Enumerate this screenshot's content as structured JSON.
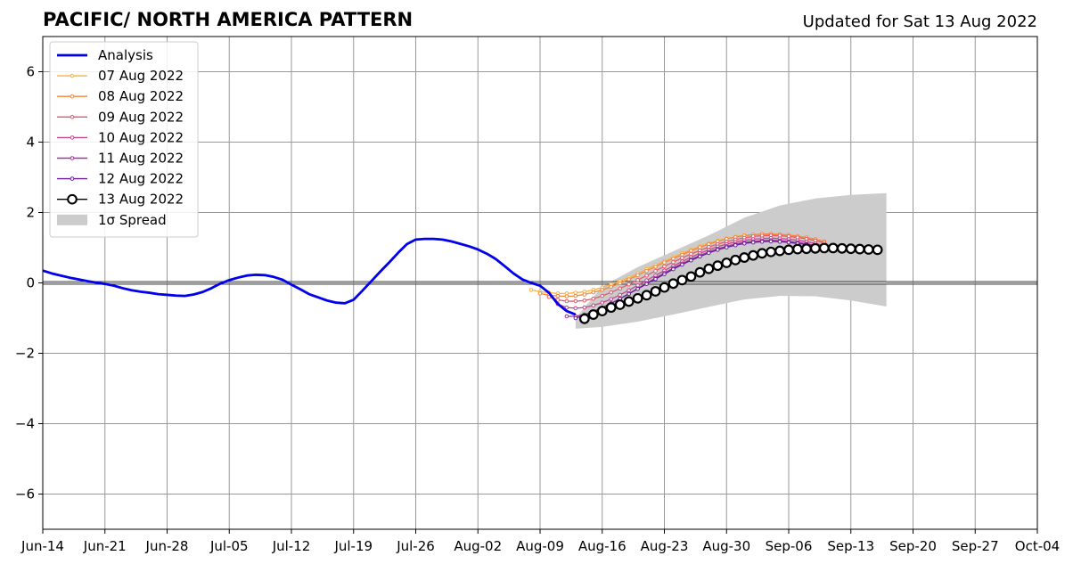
{
  "chart_data": {
    "type": "line",
    "title": "PACIFIC/ NORTH AMERICA PATTERN",
    "subtitle": "Updated for Sat 13 Aug 2022",
    "xlabel": "",
    "ylabel": "",
    "xlim": [
      "2022-06-14",
      "2022-10-04"
    ],
    "ylim": [
      -7,
      7
    ],
    "x_ticks": [
      "2022-06-14",
      "2022-06-21",
      "2022-06-28",
      "2022-07-05",
      "2022-07-12",
      "2022-07-19",
      "2022-07-26",
      "2022-08-02",
      "2022-08-09",
      "2022-08-16",
      "2022-08-23",
      "2022-08-30",
      "2022-09-06",
      "2022-09-13",
      "2022-09-20",
      "2022-09-27",
      "2022-10-04"
    ],
    "x_tick_labels": [
      "Jun-14",
      "Jun-21",
      "Jun-28",
      "Jul-05",
      "Jul-12",
      "Jul-19",
      "Jul-26",
      "Aug-02",
      "Aug-09",
      "Aug-16",
      "Aug-23",
      "Aug-30",
      "Sep-06",
      "Sep-13",
      "Sep-20",
      "Sep-27",
      "Oct-04"
    ],
    "y_ticks": [
      -6,
      -4,
      -2,
      0,
      2,
      4,
      6
    ],
    "y_tick_labels": [
      "−6",
      "−4",
      "−2",
      "0",
      "2",
      "4",
      "6"
    ],
    "grid": true,
    "legend_position": "top-left",
    "analysis": {
      "name": "Analysis",
      "color": "#0000ee",
      "points": [
        [
          "2022-06-14",
          0.35
        ],
        [
          "2022-06-15",
          0.27
        ],
        [
          "2022-06-16",
          0.21
        ],
        [
          "2022-06-17",
          0.15
        ],
        [
          "2022-06-18",
          0.1
        ],
        [
          "2022-06-19",
          0.05
        ],
        [
          "2022-06-20",
          0.01
        ],
        [
          "2022-06-21",
          -0.03
        ],
        [
          "2022-06-22",
          -0.08
        ],
        [
          "2022-06-23",
          -0.15
        ],
        [
          "2022-06-24",
          -0.21
        ],
        [
          "2022-06-25",
          -0.25
        ],
        [
          "2022-06-26",
          -0.28
        ],
        [
          "2022-06-27",
          -0.32
        ],
        [
          "2022-06-28",
          -0.34
        ],
        [
          "2022-06-29",
          -0.36
        ],
        [
          "2022-06-30",
          -0.37
        ],
        [
          "2022-07-01",
          -0.33
        ],
        [
          "2022-07-02",
          -0.26
        ],
        [
          "2022-07-03",
          -0.15
        ],
        [
          "2022-07-04",
          -0.02
        ],
        [
          "2022-07-05",
          0.08
        ],
        [
          "2022-07-06",
          0.15
        ],
        [
          "2022-07-07",
          0.21
        ],
        [
          "2022-07-08",
          0.23
        ],
        [
          "2022-07-09",
          0.22
        ],
        [
          "2022-07-10",
          0.17
        ],
        [
          "2022-07-11",
          0.09
        ],
        [
          "2022-07-12",
          -0.05
        ],
        [
          "2022-07-13",
          -0.18
        ],
        [
          "2022-07-14",
          -0.32
        ],
        [
          "2022-07-15",
          -0.41
        ],
        [
          "2022-07-16",
          -0.5
        ],
        [
          "2022-07-17",
          -0.56
        ],
        [
          "2022-07-18",
          -0.58
        ],
        [
          "2022-07-19",
          -0.48
        ],
        [
          "2022-07-20",
          -0.22
        ],
        [
          "2022-07-21",
          0.05
        ],
        [
          "2022-07-22",
          0.32
        ],
        [
          "2022-07-23",
          0.58
        ],
        [
          "2022-07-24",
          0.85
        ],
        [
          "2022-07-25",
          1.1
        ],
        [
          "2022-07-26",
          1.23
        ],
        [
          "2022-07-27",
          1.25
        ],
        [
          "2022-07-28",
          1.25
        ],
        [
          "2022-07-29",
          1.23
        ],
        [
          "2022-07-30",
          1.18
        ],
        [
          "2022-07-31",
          1.11
        ],
        [
          "2022-08-01",
          1.04
        ],
        [
          "2022-08-02",
          0.95
        ],
        [
          "2022-08-03",
          0.83
        ],
        [
          "2022-08-04",
          0.68
        ],
        [
          "2022-08-05",
          0.48
        ],
        [
          "2022-08-06",
          0.27
        ],
        [
          "2022-08-07",
          0.1
        ],
        [
          "2022-08-08",
          0.0
        ],
        [
          "2022-08-09",
          -0.08
        ],
        [
          "2022-08-10",
          -0.28
        ],
        [
          "2022-08-11",
          -0.6
        ],
        [
          "2022-08-12",
          -0.8
        ],
        [
          "2022-08-13",
          -0.9
        ]
      ]
    },
    "spread": {
      "name": "1σ Spread",
      "color": "#cccccc",
      "x": [
        "2022-08-13",
        "2022-08-16",
        "2022-08-20",
        "2022-08-24",
        "2022-08-28",
        "2022-09-01",
        "2022-09-05",
        "2022-09-09",
        "2022-09-13",
        "2022-09-17"
      ],
      "upper": [
        -1.0,
        -0.1,
        0.45,
        0.9,
        1.35,
        1.85,
        2.2,
        2.4,
        2.5,
        2.55
      ],
      "lower": [
        -1.3,
        -1.25,
        -1.1,
        -0.9,
        -0.68,
        -0.47,
        -0.37,
        -0.38,
        -0.5,
        -0.67
      ]
    },
    "series": [
      {
        "name": "07 Aug 2022",
        "color": "#fbb142",
        "x_start": "2022-08-08",
        "values": [
          -0.2,
          -0.25,
          -0.28,
          -0.3,
          -0.3,
          -0.28,
          -0.25,
          -0.2,
          -0.13,
          -0.05,
          0.05,
          0.15,
          0.27,
          0.39,
          0.51,
          0.62,
          0.73,
          0.84,
          0.94,
          1.04,
          1.13,
          1.2,
          1.26,
          1.31,
          1.35,
          1.37,
          1.38,
          1.38,
          1.37,
          1.35,
          1.32,
          1.28,
          1.22,
          1.15
        ]
      },
      {
        "name": "08 Aug 2022",
        "color": "#f3863b",
        "x_start": "2022-08-09",
        "values": [
          -0.3,
          -0.35,
          -0.37,
          -0.38,
          -0.37,
          -0.33,
          -0.27,
          -0.2,
          -0.11,
          -0.01,
          0.1,
          0.22,
          0.34,
          0.46,
          0.58,
          0.69,
          0.8,
          0.91,
          1.01,
          1.1,
          1.18,
          1.25,
          1.3,
          1.34,
          1.37,
          1.39,
          1.39,
          1.38,
          1.36,
          1.33,
          1.29,
          1.24,
          1.18
        ]
      },
      {
        "name": "09 Aug 2022",
        "color": "#e45a6c",
        "x_start": "2022-08-10",
        "values": [
          -0.4,
          -0.48,
          -0.52,
          -0.52,
          -0.5,
          -0.45,
          -0.37,
          -0.27,
          -0.16,
          -0.04,
          0.08,
          0.21,
          0.34,
          0.47,
          0.59,
          0.71,
          0.82,
          0.92,
          1.02,
          1.1,
          1.17,
          1.23,
          1.28,
          1.32,
          1.34,
          1.35,
          1.34,
          1.32,
          1.29,
          1.25,
          1.2,
          1.14
        ]
      },
      {
        "name": "10 Aug 2022",
        "color": "#c8468a",
        "x_start": "2022-08-11",
        "values": [
          -0.6,
          -0.7,
          -0.72,
          -0.7,
          -0.64,
          -0.56,
          -0.46,
          -0.34,
          -0.21,
          -0.07,
          0.07,
          0.21,
          0.35,
          0.48,
          0.61,
          0.73,
          0.84,
          0.94,
          1.03,
          1.1,
          1.16,
          1.21,
          1.24,
          1.26,
          1.27,
          1.26,
          1.24,
          1.21,
          1.17,
          1.12,
          1.06
        ]
      },
      {
        "name": "11 Aug 2022",
        "color": "#a332a3",
        "x_start": "2022-08-12",
        "values": [
          -0.95,
          -0.95,
          -0.9,
          -0.82,
          -0.71,
          -0.59,
          -0.45,
          -0.31,
          -0.16,
          -0.01,
          0.14,
          0.28,
          0.42,
          0.55,
          0.67,
          0.78,
          0.88,
          0.97,
          1.04,
          1.1,
          1.15,
          1.18,
          1.2,
          1.21,
          1.2,
          1.18,
          1.15,
          1.11,
          1.07,
          1.02
        ]
      },
      {
        "name": "12 Aug 2022",
        "color": "#6a1e9b",
        "x_start": "2022-08-13",
        "values": [
          -1.0,
          -0.92,
          -0.82,
          -0.7,
          -0.58,
          -0.45,
          -0.31,
          -0.17,
          -0.03,
          0.11,
          0.25,
          0.39,
          0.52,
          0.64,
          0.75,
          0.85,
          0.94,
          1.01,
          1.07,
          1.12,
          1.15,
          1.17,
          1.18,
          1.17,
          1.15,
          1.12,
          1.09,
          1.05,
          1.0
        ]
      },
      {
        "name": "13 Aug 2022",
        "color": "#000000",
        "fill": "#ffffff",
        "marker": "circle",
        "x_start": "2022-08-14",
        "values": [
          -1.02,
          -0.9,
          -0.8,
          -0.7,
          -0.62,
          -0.53,
          -0.44,
          -0.35,
          -0.24,
          -0.13,
          -0.02,
          0.08,
          0.18,
          0.3,
          0.4,
          0.49,
          0.57,
          0.65,
          0.72,
          0.78,
          0.84,
          0.88,
          0.91,
          0.94,
          0.96,
          0.97,
          0.98,
          0.99,
          0.99,
          0.98,
          0.97,
          0.96,
          0.95,
          0.94
        ]
      }
    ]
  }
}
